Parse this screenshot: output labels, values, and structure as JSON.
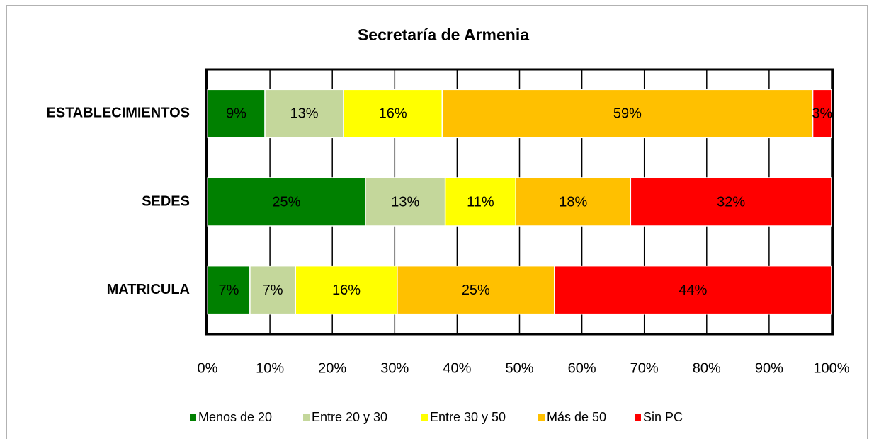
{
  "chart_data": {
    "type": "stacked-bar-horizontal",
    "title": "Secretaría de Armenia",
    "categories": [
      "ESTABLECIMIENTOS",
      "SEDES",
      "MATRICULA"
    ],
    "series": [
      {
        "name": "Menos de 20",
        "color": "#008000",
        "values": [
          9.2,
          25.3,
          6.8
        ],
        "value_labels": [
          "9%",
          "25%",
          "7%"
        ]
      },
      {
        "name": "Entre 20 y 30",
        "color": "#c4d79b",
        "values": [
          12.6,
          12.8,
          7.3
        ],
        "value_labels": [
          "13%",
          "13%",
          "7%"
        ]
      },
      {
        "name": "Entre 30 y 50",
        "color": "#ffff00",
        "values": [
          15.8,
          11.3,
          16.3
        ],
        "value_labels": [
          "16%",
          "11%",
          "16%"
        ]
      },
      {
        "name": "Más de 50",
        "color": "#ffc000",
        "values": [
          59.4,
          18.4,
          25.2
        ],
        "value_labels": [
          "59%",
          "18%",
          "25%"
        ]
      },
      {
        "name": "Sin PC",
        "color": "#ff0000",
        "values": [
          3.0,
          32.2,
          44.4
        ],
        "value_labels": [
          "3%",
          "32%",
          "44%"
        ]
      }
    ],
    "xlim": [
      0,
      100
    ],
    "xticks": [
      {
        "value": 0,
        "label": "0%"
      },
      {
        "value": 10,
        "label": "10%"
      },
      {
        "value": 20,
        "label": "20%"
      },
      {
        "value": 30,
        "label": "30%"
      },
      {
        "value": 40,
        "label": "40%"
      },
      {
        "value": 50,
        "label": "50%"
      },
      {
        "value": 60,
        "label": "60%"
      },
      {
        "value": 70,
        "label": "70%"
      },
      {
        "value": 80,
        "label": "80%"
      },
      {
        "value": 90,
        "label": "90%"
      },
      {
        "value": 100,
        "label": "100%"
      }
    ],
    "grid": true,
    "legend": "bottom"
  }
}
